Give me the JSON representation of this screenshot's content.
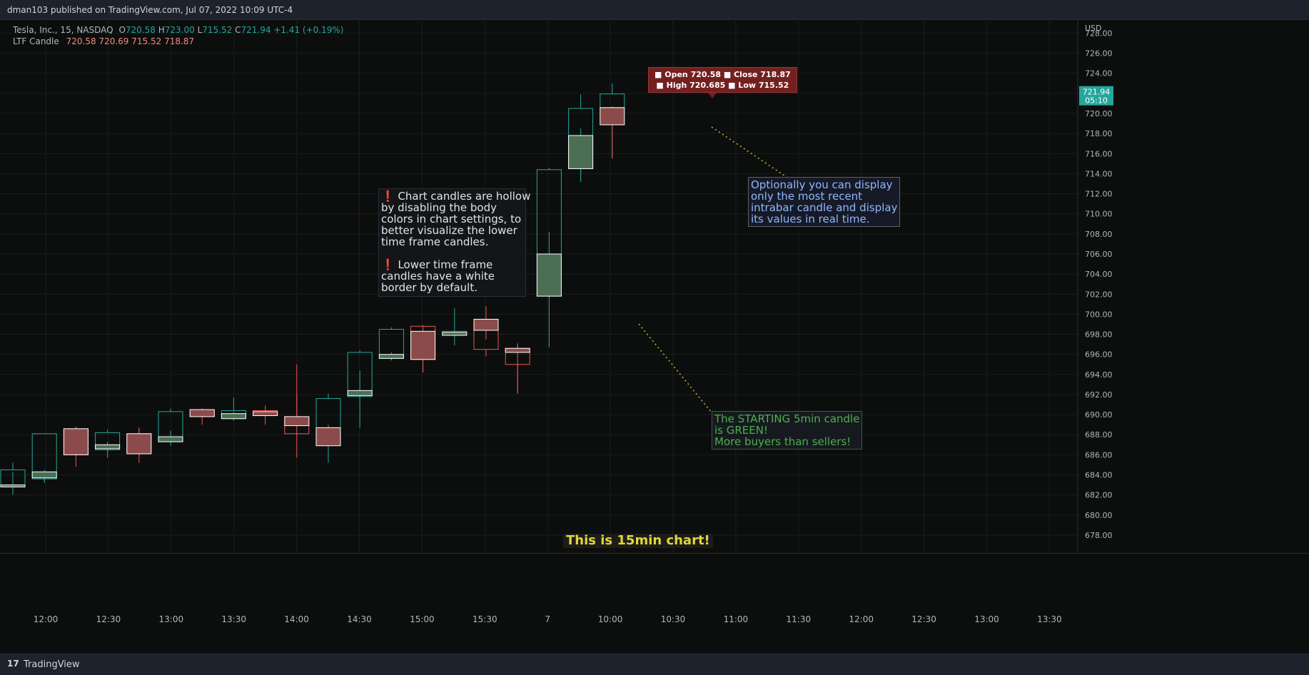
{
  "header": {
    "publisher": "dman103 published on TradingView.com, Jul 07, 2022 10:09 UTC-4"
  },
  "footer": {
    "brand": "TradingView",
    "logo_glyph": "17"
  },
  "legend": {
    "symbol": "Tesla, Inc., 15, NASDAQ",
    "o_label": "O",
    "o": "720.58",
    "h_label": "H",
    "h": "723.00",
    "l_label": "L",
    "l": "715.52",
    "c_label": "C",
    "c": "721.94",
    "change": "+1.41 (+0.19%)",
    "indicator": "LTF Candle",
    "ind_values": [
      "720.58",
      "720.69",
      "715.52",
      "718.87"
    ]
  },
  "tooltip": {
    "line1": "■ Open 720.58 ■ Close 718.87",
    "line2": "■ High 720.685 ■ Low 715.52"
  },
  "notes": {
    "hollow": [
      "❗ Chart candles are hollow",
      "by disabling the body",
      "colors in chart settings, to",
      "better visualize the lower",
      "time frame candles.",
      "",
      "❗ Lower time frame",
      "candles have a white",
      "border by default."
    ],
    "intrabar": [
      "Optionally you can display",
      "only the most recent",
      "intrabar candle and display",
      "its values in real time."
    ],
    "starting": [
      "The STARTING 5min candle",
      "is GREEN!",
      "More buyers than sellers!"
    ],
    "fifteen": "This is 15min chart!"
  },
  "colors": {
    "up": "#26a69a",
    "down": "#ef5350",
    "ltf_border": "#ffffff",
    "ltf_up_fill": "#4b6e55",
    "ltf_down_fill": "#8c4b4b",
    "grid": "#1a1d1c",
    "axis_text": "#b2b5be",
    "price_label_bg": "#26a69a"
  },
  "chart_data": {
    "type": "candlestick",
    "title": "",
    "ylabel": "USD",
    "ylim": [
      677,
      729
    ],
    "y_ticks": [
      "678.00",
      "680.00",
      "682.00",
      "684.00",
      "686.00",
      "688.00",
      "690.00",
      "692.00",
      "694.00",
      "696.00",
      "698.00",
      "700.00",
      "702.00",
      "704.00",
      "706.00",
      "708.00",
      "710.00",
      "712.00",
      "714.00",
      "716.00",
      "718.00",
      "720.00",
      "722.00",
      "724.00",
      "726.00",
      "728.00"
    ],
    "x_ticks": [
      "12:00",
      "12:30",
      "13:00",
      "13:30",
      "14:00",
      "14:30",
      "15:00",
      "15:30",
      "7",
      "10:00",
      "10:30",
      "11:00",
      "11:30",
      "12:00",
      "12:30",
      "13:00",
      "13:30"
    ],
    "last_price": {
      "value": 721.94,
      "label": "721.94",
      "countdown": "05:10"
    },
    "candles": [
      {
        "slot": 0,
        "o": 682.8,
        "h": 685.2,
        "l": 682.0,
        "c": 684.5
      },
      {
        "slot": 1,
        "o": 683.6,
        "h": 688.1,
        "l": 683.3,
        "c": 688.1
      },
      {
        "slot": 2,
        "o": 688.5,
        "h": 688.8,
        "l": 684.8,
        "c": 686.0
      },
      {
        "slot": 3,
        "o": 686.5,
        "h": 688.5,
        "l": 685.7,
        "c": 688.2
      },
      {
        "slot": 4,
        "o": 688.1,
        "h": 688.7,
        "l": 685.2,
        "c": 686.2
      },
      {
        "slot": 5,
        "o": 687.3,
        "h": 690.6,
        "l": 686.9,
        "c": 690.3
      },
      {
        "slot": 6,
        "o": 690.5,
        "h": 690.6,
        "l": 689.0,
        "c": 689.8
      },
      {
        "slot": 7,
        "o": 689.6,
        "h": 691.7,
        "l": 689.4,
        "c": 690.4
      },
      {
        "slot": 8,
        "o": 690.4,
        "h": 690.9,
        "l": 689.0,
        "c": 689.9
      },
      {
        "slot": 9,
        "o": 689.8,
        "h": 695.0,
        "l": 685.7,
        "c": 688.1
      },
      {
        "slot": 10,
        "o": 688.7,
        "h": 692.1,
        "l": 685.2,
        "c": 691.6
      },
      {
        "slot": 11,
        "o": 691.8,
        "h": 696.4,
        "l": 688.7,
        "c": 696.2
      },
      {
        "slot": 12,
        "o": 695.6,
        "h": 698.7,
        "l": 695.4,
        "c": 698.5
      },
      {
        "slot": 13,
        "o": 698.8,
        "h": 698.9,
        "l": 694.2,
        "c": 695.5
      },
      {
        "slot": 14,
        "o": 697.9,
        "h": 700.6,
        "l": 696.9,
        "c": 698.3
      },
      {
        "slot": 15,
        "o": 699.5,
        "h": 700.8,
        "l": 695.8,
        "c": 696.5
      },
      {
        "slot": 16,
        "o": 696.6,
        "h": 697.1,
        "l": 692.1,
        "c": 695.0
      },
      {
        "slot": 17,
        "o": 701.8,
        "h": 714.6,
        "l": 696.7,
        "c": 714.4
      },
      {
        "slot": 18,
        "o": 714.5,
        "h": 721.9,
        "l": 713.2,
        "c": 720.5
      },
      {
        "slot": 19,
        "o": 720.58,
        "h": 723.0,
        "l": 715.52,
        "c": 721.94
      }
    ],
    "ltf_candles": [
      {
        "slot": 0,
        "o": 682.8,
        "h": 684.3,
        "l": 682.3,
        "c": 683.0
      },
      {
        "slot": 1,
        "o": 683.7,
        "h": 684.5,
        "l": 683.2,
        "c": 684.3
      },
      {
        "slot": 2,
        "o": 688.6,
        "h": 688.8,
        "l": 685.9,
        "c": 686.0
      },
      {
        "slot": 3,
        "o": 686.6,
        "h": 687.3,
        "l": 686.3,
        "c": 687.0
      },
      {
        "slot": 4,
        "o": 688.1,
        "h": 688.7,
        "l": 685.9,
        "c": 686.1
      },
      {
        "slot": 5,
        "o": 687.3,
        "h": 688.4,
        "l": 687.1,
        "c": 687.8
      },
      {
        "slot": 6,
        "o": 690.5,
        "h": 690.6,
        "l": 689.7,
        "c": 689.8
      },
      {
        "slot": 7,
        "o": 689.6,
        "h": 690.3,
        "l": 689.5,
        "c": 690.1
      },
      {
        "slot": 8,
        "o": 690.3,
        "h": 690.4,
        "l": 689.8,
        "c": 689.9
      },
      {
        "slot": 9,
        "o": 689.8,
        "h": 692.0,
        "l": 688.0,
        "c": 688.9
      },
      {
        "slot": 10,
        "o": 688.7,
        "h": 689.0,
        "l": 686.8,
        "c": 686.9
      },
      {
        "slot": 11,
        "o": 691.9,
        "h": 694.4,
        "l": 691.7,
        "c": 692.4
      },
      {
        "slot": 12,
        "o": 695.6,
        "h": 696.2,
        "l": 695.4,
        "c": 696.0
      },
      {
        "slot": 13,
        "o": 698.3,
        "h": 698.9,
        "l": 694.2,
        "c": 695.5
      },
      {
        "slot": 14,
        "o": 697.9,
        "h": 698.3,
        "l": 697.9,
        "c": 698.2
      },
      {
        "slot": 15,
        "o": 699.5,
        "h": 699.6,
        "l": 697.5,
        "c": 698.4
      },
      {
        "slot": 16,
        "o": 696.6,
        "h": 697.0,
        "l": 692.1,
        "c": 696.2
      },
      {
        "slot": 17,
        "o": 701.8,
        "h": 708.2,
        "l": 701.6,
        "c": 706.0
      },
      {
        "slot": 18,
        "o": 714.5,
        "h": 718.5,
        "l": 713.2,
        "c": 717.8
      },
      {
        "slot": 19,
        "o": 720.58,
        "h": 720.685,
        "l": 715.52,
        "c": 718.87
      }
    ]
  }
}
